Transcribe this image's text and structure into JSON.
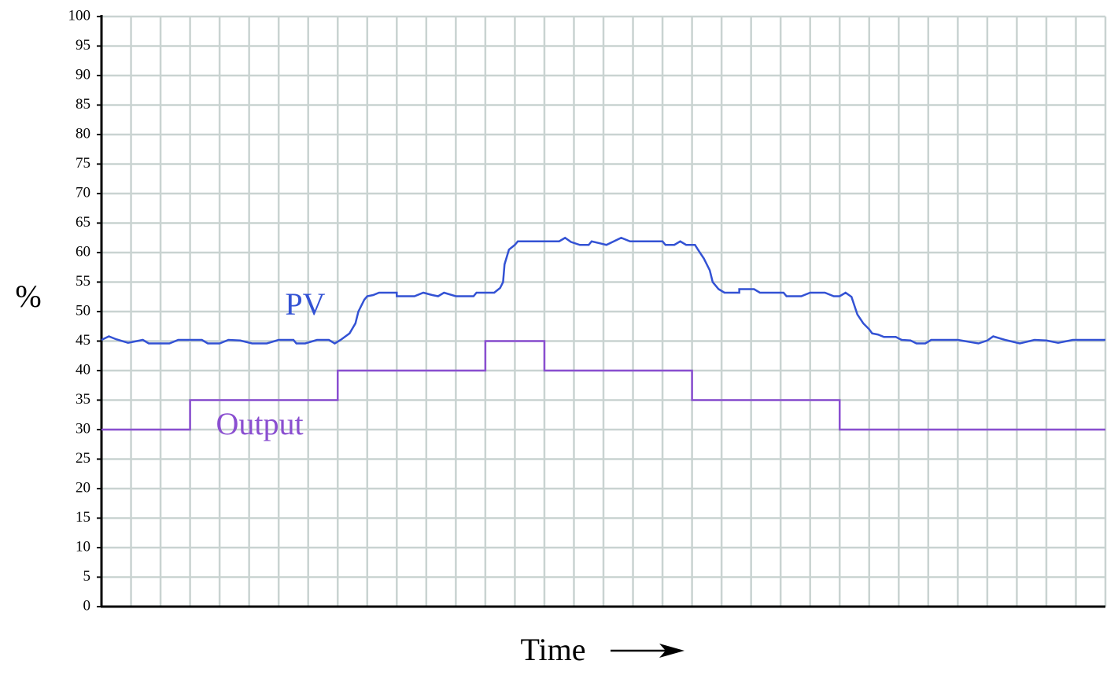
{
  "chart_data": {
    "type": "line",
    "xlabel": "Time",
    "ylabel": "%",
    "xlim": [
      0,
      34
    ],
    "xticks": [
      0,
      1,
      2,
      3,
      4,
      5,
      6,
      7,
      8,
      9,
      10,
      11,
      12,
      13,
      14,
      15,
      16,
      17,
      18,
      19,
      20,
      21,
      22,
      23,
      24,
      25,
      26,
      27,
      28,
      29,
      30,
      31,
      32,
      33,
      34
    ],
    "ylim": [
      0,
      100
    ],
    "yticks": [
      0,
      5,
      10,
      15,
      20,
      25,
      30,
      35,
      40,
      45,
      50,
      55,
      60,
      65,
      70,
      75,
      80,
      85,
      90,
      95,
      100
    ],
    "grid": true,
    "grid_color": "#c9d3d1",
    "series": [
      {
        "name": "PV",
        "color": "#3352d4",
        "x": [
          0,
          0.25,
          0.5,
          0.9,
          1.4,
          1.6,
          2.3,
          2.6,
          3.4,
          3.6,
          4.0,
          4.3,
          4.7,
          5.1,
          5.6,
          6.0,
          6.5,
          6.6,
          6.9,
          7.3,
          7.7,
          7.9,
          8.1,
          8.4,
          8.6,
          8.7,
          8.9,
          9.0,
          9.2,
          9.4,
          10.0,
          10.0,
          10.6,
          10.9,
          11.2,
          11.4,
          11.6,
          12.0,
          12.6,
          12.7,
          13.3,
          13.5,
          13.6,
          13.65,
          13.8,
          14.0,
          14.1,
          15.5,
          15.7,
          15.9,
          16.2,
          16.5,
          16.6,
          17.1,
          17.6,
          17.9,
          19.0,
          19.1,
          19.4,
          19.6,
          19.8,
          20.1,
          20.2,
          20.4,
          20.6,
          20.7,
          20.9,
          21.1,
          21.6,
          21.6,
          22.1,
          22.3,
          23.1,
          23.2,
          23.7,
          24.0,
          24.5,
          24.8,
          25.0,
          25.2,
          25.4,
          25.5,
          25.6,
          25.8,
          26.0,
          26.1,
          26.3,
          26.5,
          26.9,
          27.1,
          27.4,
          27.6,
          27.9,
          28.1,
          29.0,
          29.7,
          30.0,
          30.2,
          30.6,
          31.1,
          31.6,
          32.0,
          32.4,
          32.9,
          34
        ],
        "values": [
          45.2,
          45.8,
          45.3,
          44.7,
          45.2,
          44.6,
          44.6,
          45.2,
          45.2,
          44.6,
          44.6,
          45.2,
          45.1,
          44.6,
          44.6,
          45.2,
          45.2,
          44.6,
          44.6,
          45.2,
          45.2,
          44.6,
          45.2,
          46.3,
          48,
          50,
          52,
          52.6,
          52.8,
          53.2,
          53.2,
          52.6,
          52.6,
          53.2,
          52.8,
          52.6,
          53.2,
          52.6,
          52.6,
          53.2,
          53.2,
          54,
          55,
          58,
          60.5,
          61.3,
          61.9,
          61.9,
          62.5,
          61.8,
          61.3,
          61.3,
          61.9,
          61.3,
          62.5,
          61.9,
          61.9,
          61.3,
          61.3,
          61.9,
          61.3,
          61.3,
          60.5,
          59,
          57,
          55,
          53.8,
          53.2,
          53.2,
          53.8,
          53.8,
          53.2,
          53.2,
          52.6,
          52.6,
          53.2,
          53.2,
          52.6,
          52.6,
          53.2,
          52.5,
          51,
          49.5,
          48,
          47,
          46.3,
          46.1,
          45.7,
          45.7,
          45.2,
          45.1,
          44.6,
          44.6,
          45.2,
          45.2,
          44.6,
          45.1,
          45.8,
          45.2,
          44.6,
          45.2,
          45.1,
          44.7,
          45.2,
          45.2
        ]
      },
      {
        "name": "Output",
        "color": "#8a4fd0",
        "x": [
          0,
          3,
          3,
          8,
          8,
          13,
          13,
          15,
          15,
          20,
          20,
          25,
          25,
          34
        ],
        "values": [
          30,
          30,
          35,
          35,
          40,
          40,
          45,
          45,
          40,
          40,
          35,
          35,
          30,
          30
        ]
      }
    ]
  }
}
